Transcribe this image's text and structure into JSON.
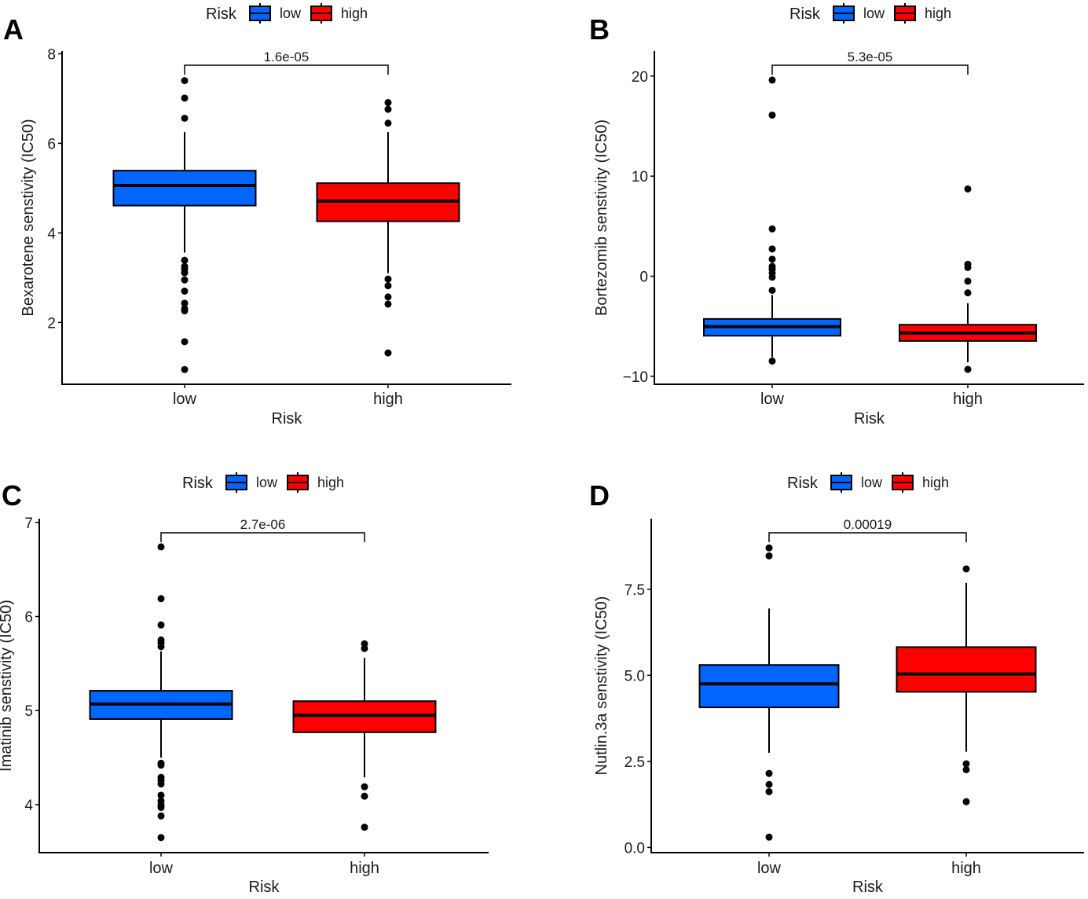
{
  "colors": {
    "low": "#0066FF",
    "high": "#FF0000",
    "outline": "#000000"
  },
  "chart_data": [
    {
      "panel": "A",
      "type": "box",
      "legend": {
        "title": "Risk",
        "entries": [
          "low",
          "high"
        ],
        "position": "top"
      },
      "xlabel": "Risk",
      "ylabel": "Bexarotene senstivity (IC50)",
      "categories": [
        "low",
        "high"
      ],
      "yticks": [
        2,
        4,
        6,
        8
      ],
      "ytick_labels": [
        "2",
        "4",
        "6",
        "8"
      ],
      "ylim": [
        0.62,
        8.06
      ],
      "pvalue": "1.6e-05",
      "boxes": [
        {
          "group": "low",
          "q1": 4.61,
          "median": 5.06,
          "q3": 5.39,
          "whisker_low": 3.56,
          "whisker_high": 6.25,
          "outliers": [
            7.4,
            7.01,
            6.56,
            3.39,
            3.25,
            3.19,
            3.11,
            2.95,
            2.7,
            2.43,
            2.31,
            2.26,
            1.57,
            0.95
          ]
        },
        {
          "group": "high",
          "q1": 4.26,
          "median": 4.71,
          "q3": 5.11,
          "whisker_low": 3.1,
          "whisker_high": 6.25,
          "outliers": [
            6.91,
            6.76,
            6.45,
            2.97,
            2.82,
            2.57,
            2.41,
            1.32
          ]
        }
      ]
    },
    {
      "panel": "B",
      "type": "box",
      "legend": {
        "title": "Risk",
        "entries": [
          "low",
          "high"
        ],
        "position": "top"
      },
      "xlabel": "Risk",
      "ylabel": "Bortezomib senstivity (IC50)",
      "categories": [
        "low",
        "high"
      ],
      "yticks": [
        -10,
        0,
        10,
        20
      ],
      "ytick_labels": [
        "−10",
        "0",
        "10",
        "20"
      ],
      "ylim": [
        -10.8,
        22.5
      ],
      "pvalue": "5.3e-05",
      "boxes": [
        {
          "group": "low",
          "q1": -5.95,
          "median": -5.04,
          "q3": -4.27,
          "whisker_low": -8.1,
          "whisker_high": -1.88,
          "outliers": [
            19.6,
            16.1,
            4.73,
            2.72,
            1.7,
            0.98,
            0.7,
            0.32,
            -0.09,
            -1.41,
            -8.48
          ]
        },
        {
          "group": "high",
          "q1": -6.47,
          "median": -5.68,
          "q3": -4.85,
          "whisker_low": -8.6,
          "whisker_high": -2.7,
          "outliers": [
            8.72,
            1.2,
            0.87,
            -0.5,
            -1.66,
            -9.31
          ]
        }
      ]
    },
    {
      "panel": "C",
      "type": "box",
      "legend": {
        "title": "Risk",
        "entries": [
          "low",
          "high"
        ],
        "position": "top"
      },
      "xlabel": "Risk",
      "ylabel": "Imatinib senstivity (IC50)",
      "categories": [
        "low",
        "high"
      ],
      "yticks": [
        4,
        5,
        6,
        7
      ],
      "ytick_labels": [
        "4",
        "5",
        "6",
        "7"
      ],
      "ylim": [
        3.49,
        7.04
      ],
      "pvalue": "2.7e-06",
      "boxes": [
        {
          "group": "low",
          "q1": 4.91,
          "median": 5.07,
          "q3": 5.21,
          "whisker_low": 4.5,
          "whisker_high": 5.63,
          "outliers": [
            6.74,
            6.19,
            5.91,
            5.75,
            5.72,
            5.68,
            4.44,
            4.42,
            4.29,
            4.26,
            4.22,
            4.1,
            4.04,
            4.0,
            3.97,
            3.88,
            3.65
          ]
        },
        {
          "group": "high",
          "q1": 4.77,
          "median": 4.95,
          "q3": 5.1,
          "whisker_low": 4.29,
          "whisker_high": 5.56,
          "outliers": [
            5.71,
            5.66,
            4.19,
            4.09,
            3.76
          ]
        }
      ]
    },
    {
      "panel": "D",
      "type": "box",
      "legend": {
        "title": "Risk",
        "entries": [
          "low",
          "high"
        ],
        "position": "top"
      },
      "xlabel": "Risk",
      "ylabel": "Nutlin.3a senstivity (IC50)",
      "categories": [
        "low",
        "high"
      ],
      "yticks": [
        0,
        2.5,
        5,
        7.5
      ],
      "ytick_labels": [
        "0.0",
        "2.5",
        "5.0",
        "7.5"
      ],
      "ylim": [
        -0.15,
        9.55
      ],
      "pvalue": "0.00019",
      "boxes": [
        {
          "group": "low",
          "q1": 4.07,
          "median": 4.75,
          "q3": 5.3,
          "whisker_low": 2.75,
          "whisker_high": 6.94,
          "outliers": [
            8.7,
            8.47,
            2.15,
            1.83,
            1.62,
            0.3
          ]
        },
        {
          "group": "high",
          "q1": 4.52,
          "median": 5.04,
          "q3": 5.82,
          "whisker_low": 2.78,
          "whisker_high": 7.68,
          "outliers": [
            8.09,
            2.43,
            2.26,
            1.33
          ]
        }
      ]
    }
  ]
}
